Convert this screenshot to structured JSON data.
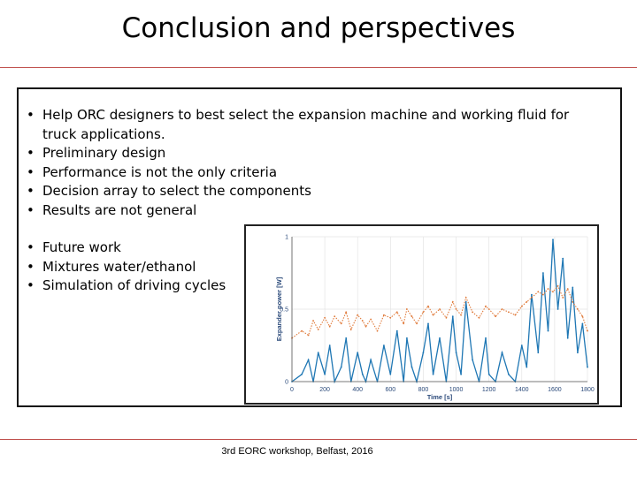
{
  "slide": {
    "title": "Conclusion and perspectives",
    "bullets_main": [
      "Help ORC designers to best select the expansion machine and working fluid for truck applications.",
      "Preliminary design",
      "Performance is not the only criteria",
      "Decision array to select the components",
      "Results are not general"
    ],
    "bullets_future": [
      "Future work",
      "Mixtures water/ethanol",
      "Simulation of driving cycles"
    ],
    "footer": "3rd EORC workshop, Belfast, 2016"
  },
  "colors": {
    "accent_rule": "#c0504d",
    "series_blue": "#1f77b4",
    "series_orange": "#e07a3a"
  },
  "chart_data": {
    "type": "line",
    "title": "",
    "xlabel": "Time [s]",
    "ylabel": "Expander power [W]",
    "xlim": [
      0,
      1800
    ],
    "ylim": [
      0,
      1
    ],
    "xticks": [
      "0",
      "200",
      "400",
      "600",
      "800",
      "1000",
      "1200",
      "1400",
      "1600",
      "1800"
    ],
    "yticks": [
      "0",
      "0.5",
      "1"
    ],
    "grid": true,
    "series": [
      {
        "color": "#1f77b4",
        "style": "solid",
        "x": [
          0,
          60,
          100,
          130,
          160,
          200,
          230,
          260,
          300,
          330,
          360,
          400,
          430,
          450,
          480,
          520,
          560,
          600,
          640,
          680,
          700,
          730,
          760,
          800,
          830,
          860,
          900,
          940,
          980,
          1000,
          1030,
          1060,
          1100,
          1140,
          1180,
          1200,
          1240,
          1280,
          1320,
          1360,
          1400,
          1430,
          1460,
          1500,
          1530,
          1560,
          1590,
          1620,
          1650,
          1680,
          1710,
          1740,
          1770,
          1800
        ],
        "y": [
          0.0,
          0.05,
          0.15,
          0.0,
          0.2,
          0.05,
          0.25,
          0.0,
          0.1,
          0.3,
          0.0,
          0.2,
          0.05,
          0.0,
          0.15,
          0.0,
          0.25,
          0.05,
          0.35,
          0.0,
          0.3,
          0.1,
          0.0,
          0.2,
          0.4,
          0.05,
          0.3,
          0.0,
          0.45,
          0.2,
          0.05,
          0.55,
          0.15,
          0.0,
          0.3,
          0.05,
          0.0,
          0.2,
          0.05,
          0.0,
          0.25,
          0.1,
          0.6,
          0.2,
          0.75,
          0.35,
          0.98,
          0.5,
          0.85,
          0.3,
          0.65,
          0.2,
          0.4,
          0.1
        ]
      },
      {
        "color": "#e07a3a",
        "style": "dotted",
        "x": [
          0,
          60,
          100,
          130,
          160,
          200,
          230,
          260,
          300,
          330,
          360,
          400,
          430,
          450,
          480,
          520,
          560,
          600,
          640,
          680,
          700,
          730,
          760,
          800,
          830,
          860,
          900,
          940,
          980,
          1000,
          1030,
          1060,
          1100,
          1140,
          1180,
          1200,
          1240,
          1280,
          1320,
          1360,
          1400,
          1430,
          1460,
          1500,
          1530,
          1560,
          1590,
          1620,
          1650,
          1680,
          1710,
          1740,
          1770,
          1800
        ],
        "y": [
          0.3,
          0.35,
          0.32,
          0.42,
          0.36,
          0.44,
          0.38,
          0.45,
          0.4,
          0.48,
          0.36,
          0.46,
          0.42,
          0.38,
          0.43,
          0.35,
          0.46,
          0.44,
          0.48,
          0.4,
          0.5,
          0.45,
          0.4,
          0.48,
          0.52,
          0.46,
          0.5,
          0.44,
          0.55,
          0.5,
          0.46,
          0.58,
          0.48,
          0.44,
          0.52,
          0.5,
          0.45,
          0.5,
          0.48,
          0.46,
          0.52,
          0.55,
          0.58,
          0.62,
          0.6,
          0.64,
          0.62,
          0.66,
          0.58,
          0.64,
          0.55,
          0.5,
          0.45,
          0.35
        ]
      }
    ]
  }
}
